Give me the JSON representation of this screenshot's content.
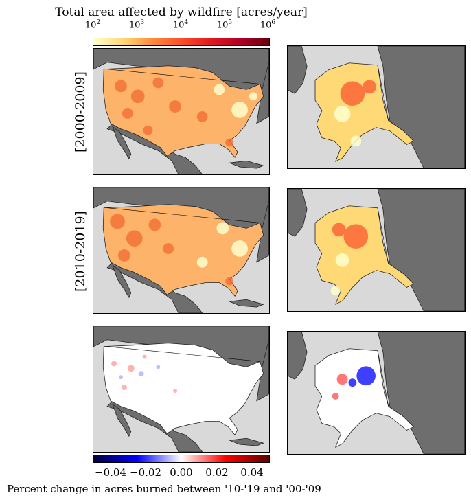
{
  "colorbar_top": {
    "title": "Total area affected by wildfire [acres/year]",
    "ticks": [
      {
        "base": "10",
        "exp": "2"
      },
      {
        "base": "10",
        "exp": "3"
      },
      {
        "base": "10",
        "exp": "4"
      },
      {
        "base": "10",
        "exp": "5"
      },
      {
        "base": "10",
        "exp": "6"
      }
    ],
    "scale": "log",
    "colormap": [
      "#ffffcc",
      "#fed976",
      "#fd8d3c",
      "#fc4e2a",
      "#e31a1c",
      "#b10026",
      "#67000d"
    ]
  },
  "rows": [
    {
      "label": "[2000-2009]"
    },
    {
      "label": "[2010-2019]"
    },
    {
      "label": ""
    }
  ],
  "colorbar_bottom": {
    "label": "Percent change in acres burned between '10-'19 and '00-'09",
    "ticks": [
      "−0.04",
      "−0.02",
      "0.00",
      "0.02",
      "0.04"
    ],
    "range": [
      -0.05,
      0.05
    ],
    "colormap": [
      "#00003f",
      "#0000ff",
      "#ffffff",
      "#ff0000",
      "#5f0000"
    ]
  },
  "colors": {
    "ocean": "#d9d9d9",
    "land": "#6e6e6e",
    "border": "#000000"
  }
}
